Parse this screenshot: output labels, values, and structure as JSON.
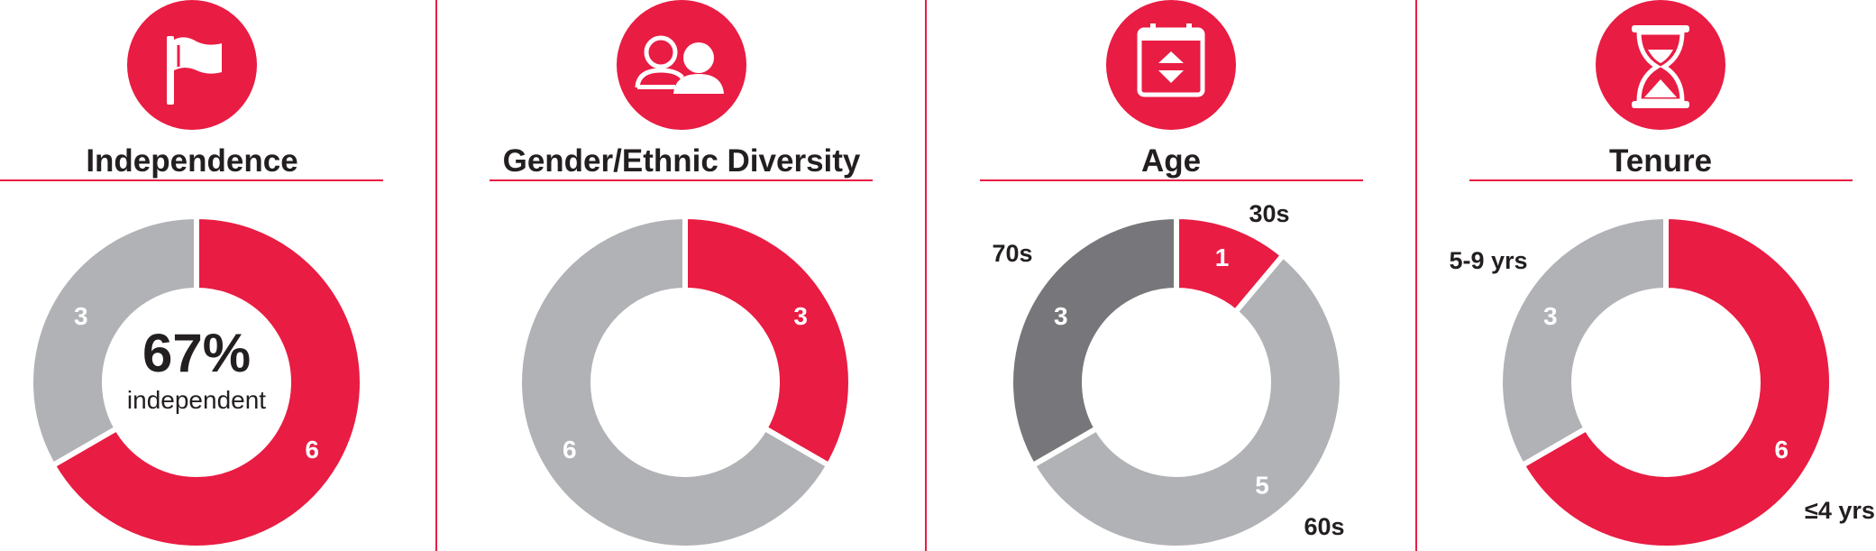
{
  "colors": {
    "red": "#e91c43",
    "gray": "#b1b2b5",
    "dark_gray": "#77777b"
  },
  "chart_data": [
    {
      "type": "pie",
      "title": "Independence",
      "icon": "flag-icon",
      "slices": [
        {
          "value": 6,
          "label": "6",
          "color": "#e91c43"
        },
        {
          "value": 3,
          "label": "3",
          "color": "#b1b2b5"
        }
      ],
      "center": {
        "value": "67%",
        "text": "independent"
      }
    },
    {
      "type": "pie",
      "title": "Gender/Ethnic Diversity",
      "icon": "people-icon",
      "slices": [
        {
          "value": 3,
          "label": "3",
          "color": "#e91c43"
        },
        {
          "value": 6,
          "label": "6",
          "color": "#b1b2b5"
        }
      ]
    },
    {
      "type": "pie",
      "title": "Age",
      "icon": "calendar-icon",
      "slices": [
        {
          "value": 1,
          "label": "1",
          "category": "30s",
          "color": "#e91c43"
        },
        {
          "value": 5,
          "label": "5",
          "category": "60s",
          "color": "#b1b2b5"
        },
        {
          "value": 3,
          "label": "3",
          "category": "70s",
          "color": "#77777b"
        }
      ]
    },
    {
      "type": "pie",
      "title": "Tenure",
      "icon": "hourglass-icon",
      "slices": [
        {
          "value": 6,
          "label": "6",
          "category": "≤4 yrs",
          "color": "#e91c43"
        },
        {
          "value": 3,
          "label": "3",
          "category": "5-9 yrs",
          "color": "#b1b2b5"
        }
      ]
    }
  ]
}
